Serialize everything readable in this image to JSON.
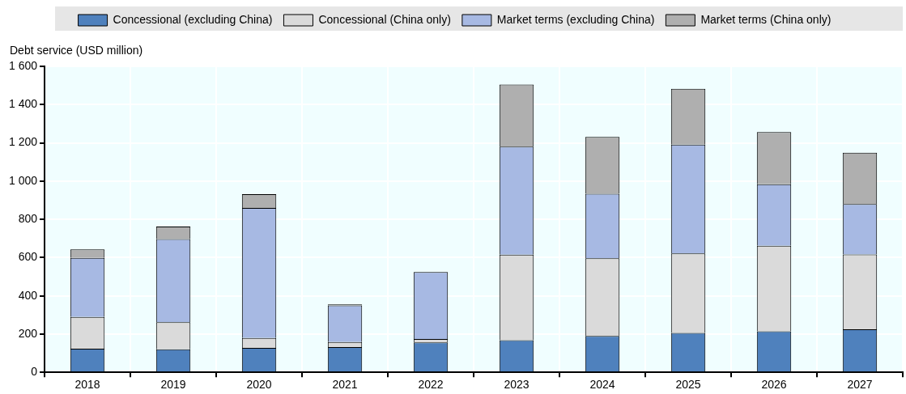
{
  "chart_data": {
    "type": "bar",
    "stacked": true,
    "ylabel": "Debt service (USD million)",
    "categories": [
      "2018",
      "2019",
      "2020",
      "2021",
      "2022",
      "2023",
      "2024",
      "2025",
      "2026",
      "2027"
    ],
    "series": [
      {
        "name": "Concessional (excluding China)",
        "color": "#4f81bd",
        "values": [
          124,
          120,
          128,
          132,
          156,
          168,
          190,
          206,
          214,
          225
        ]
      },
      {
        "name": "Concessional (China only)",
        "color": "#dadada",
        "values": [
          166,
          142,
          52,
          26,
          18,
          447,
          406,
          416,
          448,
          391
        ]
      },
      {
        "name": "Market terms (excluding China)",
        "color": "#a7b9e3",
        "values": [
          308,
          435,
          680,
          192,
          350,
          565,
          338,
          569,
          321,
          264
        ]
      },
      {
        "name": "Market terms (China only)",
        "color": "#afafaf",
        "values": [
          45,
          65,
          72,
          5,
          0,
          325,
          297,
          292,
          273,
          268
        ]
      }
    ],
    "ylim": [
      0,
      1600
    ],
    "yticks": [
      0,
      200,
      400,
      600,
      800,
      {
        "value": 1000,
        "label": "1 000"
      },
      {
        "value": 1200,
        "label": "1 200"
      },
      {
        "value": 1400,
        "label": "1 400"
      },
      {
        "value": 1600,
        "label": "1 600"
      }
    ],
    "grid": true,
    "legend": "top"
  }
}
